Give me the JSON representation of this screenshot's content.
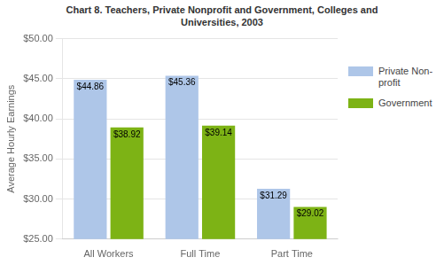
{
  "chart_data": {
    "type": "bar",
    "title": "Chart 8. Teachers, Private Nonprofit and Government, Colleges and\nUniversities, 2003",
    "categories": [
      "All Workers",
      "Full Time",
      "Part Time"
    ],
    "series": [
      {
        "name": "Private Non-\nprofit",
        "color": "#aec6e8",
        "values": [
          44.86,
          45.36,
          31.29
        ],
        "value_labels": [
          "$44.86",
          "$45.36",
          "$31.29"
        ]
      },
      {
        "name": "Government",
        "color": "#7db315",
        "values": [
          38.92,
          39.14,
          29.02
        ],
        "value_labels": [
          "$38.92",
          "$39.14",
          "$29.02"
        ]
      }
    ],
    "ylabel": "Average Hourly Earnings",
    "ylim": [
      25.0,
      50.0
    ],
    "yticks": [
      {
        "value": 25.0,
        "label": "$25.00"
      },
      {
        "value": 30.0,
        "label": "$30.00"
      },
      {
        "value": 35.0,
        "label": "$35.00"
      },
      {
        "value": 40.0,
        "label": "$40.00"
      },
      {
        "value": 45.0,
        "label": "$45.00"
      },
      {
        "value": 50.0,
        "label": "$50.00"
      }
    ],
    "grid": true,
    "legend": "right",
    "data_labels": true
  }
}
